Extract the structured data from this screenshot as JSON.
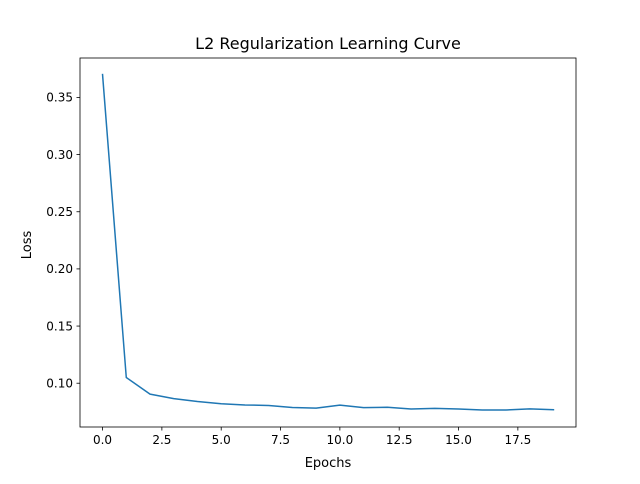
{
  "chart_data": {
    "type": "line",
    "title": "L2 Regularization Learning Curve",
    "xlabel": "Epochs",
    "ylabel": "Loss",
    "xlim": [
      -0.95,
      19.95
    ],
    "ylim": [
      0.0617,
      0.3845
    ],
    "x_ticks": [
      0.0,
      2.5,
      5.0,
      7.5,
      10.0,
      12.5,
      15.0,
      17.5
    ],
    "x_tick_labels": [
      "0.0",
      "2.5",
      "5.0",
      "7.5",
      "10.0",
      "12.5",
      "15.0",
      "17.5"
    ],
    "y_ticks": [
      0.1,
      0.15,
      0.2,
      0.25,
      0.3,
      0.35
    ],
    "y_tick_labels": [
      "0.10",
      "0.15",
      "0.20",
      "0.25",
      "0.30",
      "0.35"
    ],
    "grid": false,
    "series": [
      {
        "color": "#1f77b4",
        "x": [
          0,
          1,
          2,
          3,
          4,
          5,
          6,
          7,
          8,
          9,
          10,
          11,
          12,
          13,
          14,
          15,
          16,
          17,
          18,
          19
        ],
        "y": [
          0.37,
          0.105,
          0.0905,
          0.0865,
          0.084,
          0.082,
          0.081,
          0.0805,
          0.0788,
          0.0782,
          0.0808,
          0.0786,
          0.079,
          0.0775,
          0.078,
          0.0775,
          0.0766,
          0.0766,
          0.0776,
          0.0768
        ]
      }
    ]
  }
}
